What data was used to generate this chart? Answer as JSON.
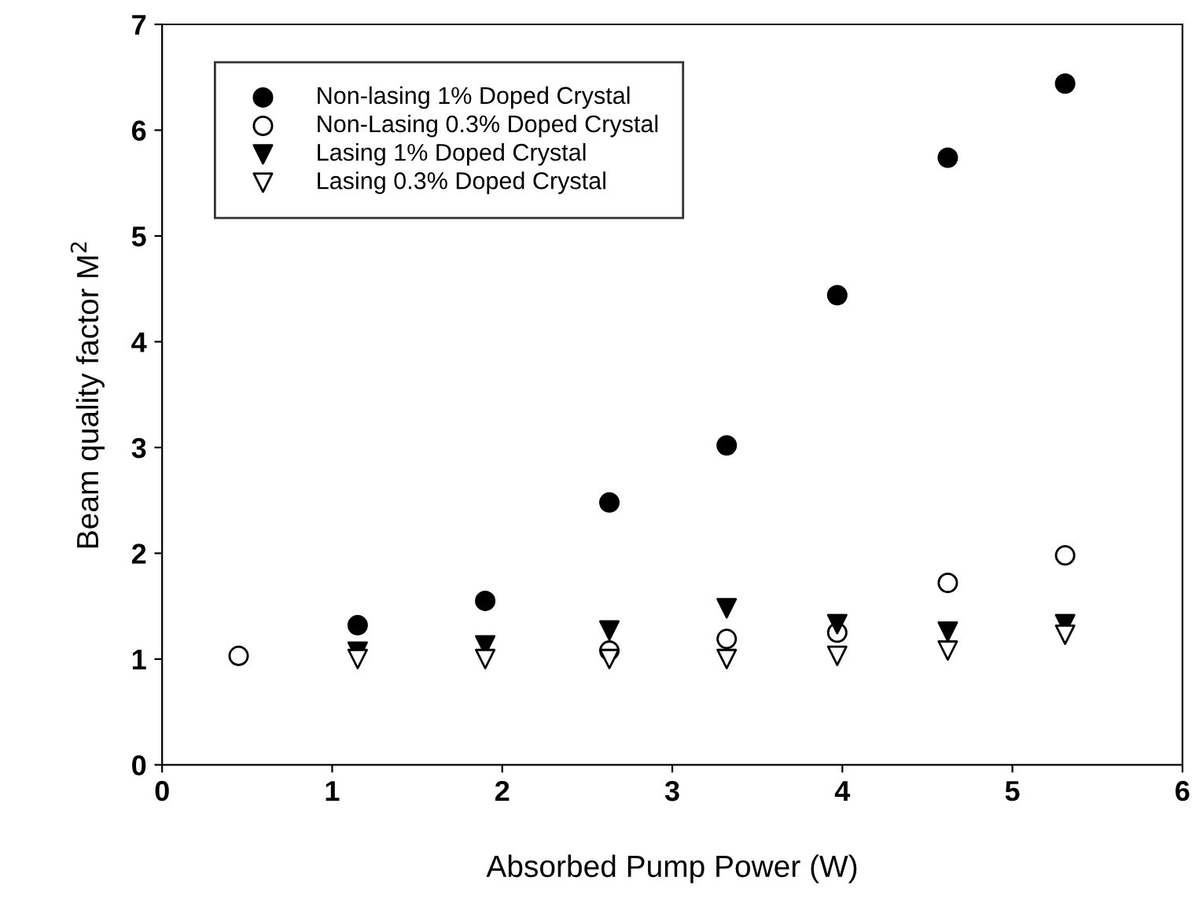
{
  "chart_data": {
    "type": "scatter",
    "xlabel": "Absorbed Pump Power (W)",
    "ylabel": "Beam quality factor M$^{2}$",
    "x": [
      0.45,
      1.15,
      1.9,
      2.63,
      3.32,
      3.97,
      4.62,
      5.31
    ],
    "series": [
      {
        "name": "Non-lasing 1% Doped Crystal",
        "color": "#000000",
        "marker": "circle",
        "values": [
          null,
          1.32,
          1.55,
          2.48,
          3.02,
          4.44,
          5.74,
          6.44
        ]
      },
      {
        "name": "Non-Lasing 0.3% Doped Crystal",
        "color": "#ffffff",
        "marker": "circle",
        "values": [
          1.03,
          null,
          null,
          1.08,
          1.19,
          1.25,
          1.72,
          1.98
        ]
      },
      {
        "name": "Lasing 1% Doped Crystal",
        "color": "#000000",
        "marker": "triangle",
        "values": [
          null,
          1.07,
          1.13,
          1.27,
          1.48,
          1.33,
          1.26,
          1.33
        ]
      },
      {
        "name": "Lasing 0.3% Doped Crystal",
        "color": "#ffffff",
        "marker": "triangle",
        "values": [
          null,
          1.0,
          1.0,
          1.0,
          1.0,
          1.03,
          1.08,
          1.23
        ]
      }
    ],
    "xlim": [
      0,
      6
    ],
    "ylim": [
      0,
      7
    ],
    "xticks": [
      0,
      1,
      2,
      3,
      4,
      5,
      6
    ],
    "yticks": [
      0,
      1,
      2,
      3,
      4,
      5,
      6,
      7
    ],
    "grid": false,
    "legend": "top left"
  }
}
